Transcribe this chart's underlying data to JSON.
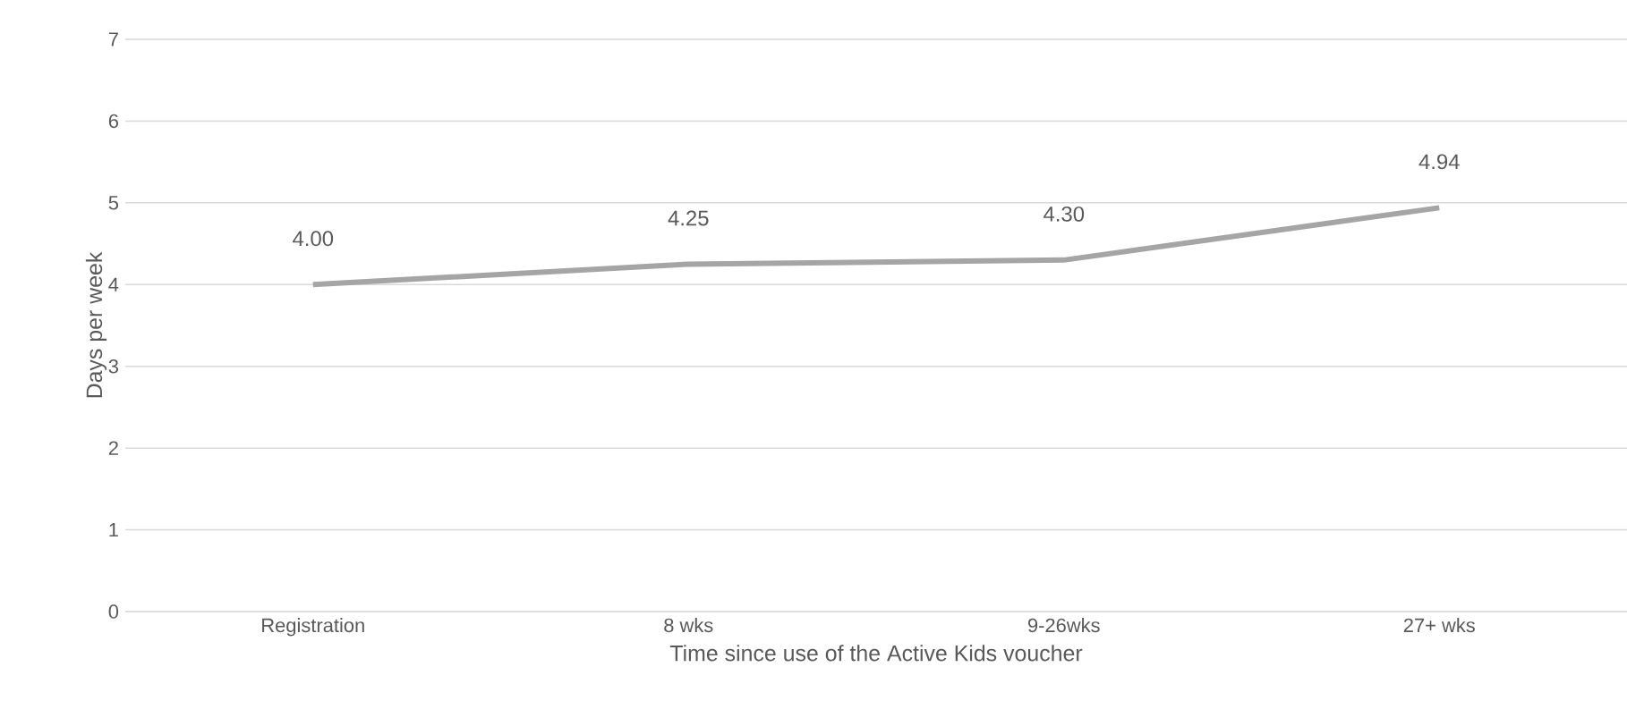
{
  "chart_data": {
    "type": "line",
    "xlabel": "Time since use of the Active Kids voucher",
    "ylabel": "Days per week",
    "categories": [
      "Registration",
      "8 wks",
      "9-26wks",
      "27+ wks"
    ],
    "series": [
      {
        "color": "#a5a5a5",
        "values": [
          4.0,
          4.25,
          4.3,
          4.94
        ],
        "value_labels": [
          "4.00",
          "4.25",
          "4.30",
          "4.94"
        ]
      }
    ],
    "ylim": [
      0,
      7
    ],
    "yticks": [
      0,
      1,
      2,
      3,
      4,
      5,
      6,
      7
    ],
    "grid": "y",
    "marker": "none",
    "line_style": "solid"
  }
}
